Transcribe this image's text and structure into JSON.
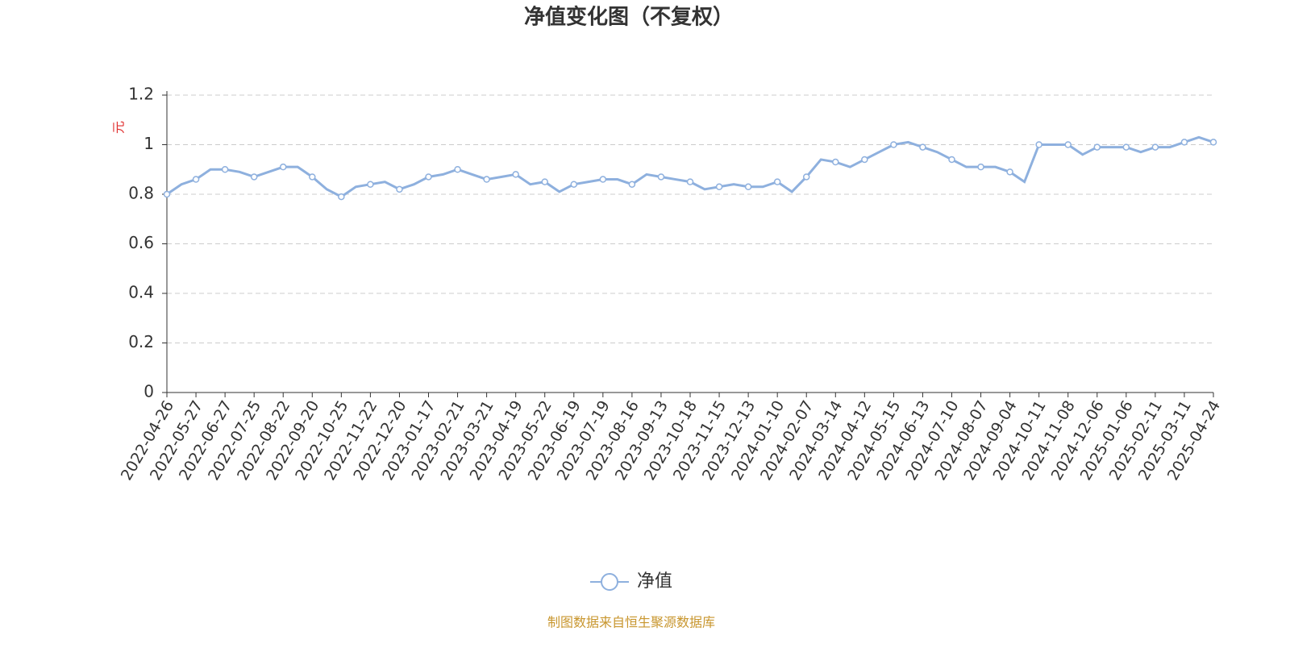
{
  "chart_data": {
    "type": "line",
    "title": "净值变化图（不复权）",
    "y_label": "元",
    "source": "制图数据来自恒生聚源数据库",
    "categories": [
      "2022-04-26",
      null,
      "2022-05-27",
      null,
      "2022-06-27",
      null,
      "2022-07-25",
      null,
      "2022-08-22",
      null,
      "2022-09-20",
      null,
      "2022-10-25",
      null,
      "2022-11-22",
      null,
      "2022-12-20",
      null,
      "2023-01-17",
      null,
      "2023-02-21",
      null,
      "2023-03-21",
      null,
      "2023-04-19",
      null,
      "2023-05-22",
      null,
      "2023-06-19",
      null,
      "2023-07-19",
      null,
      "2023-08-16",
      null,
      "2023-09-13",
      null,
      "2023-10-18",
      null,
      "2023-11-15",
      null,
      "2023-12-13",
      null,
      "2024-01-10",
      null,
      "2024-02-07",
      null,
      "2024-03-14",
      null,
      "2024-04-12",
      null,
      "2024-05-15",
      null,
      "2024-06-13",
      null,
      "2024-07-10",
      null,
      "2024-08-07",
      null,
      "2024-09-04",
      null,
      "2024-10-11",
      null,
      "2024-11-08",
      null,
      "2024-12-06",
      null,
      "2025-01-06",
      null,
      "2025-02-11",
      null,
      "2025-03-11",
      null,
      "2025-04-24"
    ],
    "series": [
      {
        "name": "净值",
        "color": "#8eb0de",
        "values": [
          0.8,
          0.84,
          0.86,
          0.9,
          0.9,
          0.89,
          0.87,
          0.89,
          0.91,
          0.91,
          0.87,
          0.82,
          0.79,
          0.83,
          0.84,
          0.85,
          0.82,
          0.84,
          0.87,
          0.88,
          0.9,
          0.88,
          0.86,
          0.87,
          0.88,
          0.84,
          0.85,
          0.81,
          0.84,
          0.85,
          0.86,
          0.86,
          0.84,
          0.88,
          0.87,
          0.86,
          0.85,
          0.82,
          0.83,
          0.84,
          0.83,
          0.83,
          0.85,
          0.81,
          0.87,
          0.94,
          0.93,
          0.91,
          0.94,
          0.97,
          1.0,
          1.01,
          0.99,
          0.97,
          0.94,
          0.91,
          0.91,
          0.91,
          0.89,
          0.85,
          1.0,
          1.0,
          1.0,
          0.96,
          0.99,
          0.99,
          0.99,
          0.97,
          0.99,
          0.99,
          1.01,
          1.03,
          1.01
        ]
      }
    ],
    "ylim": [
      0,
      1.2
    ],
    "yticks": [
      0,
      0.2,
      0.4,
      0.6,
      0.8,
      1,
      1.2
    ],
    "grid": true
  }
}
